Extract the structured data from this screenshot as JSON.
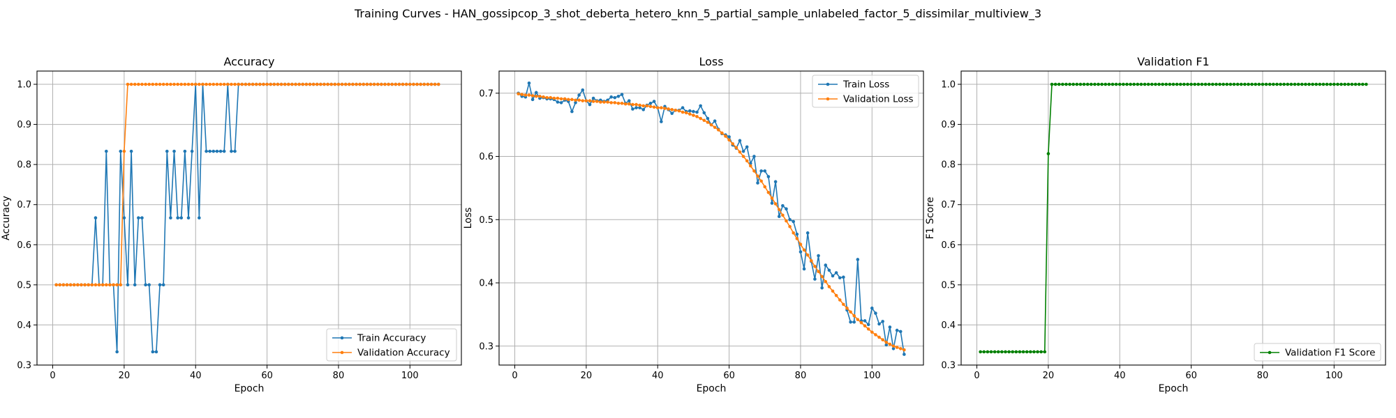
{
  "title": "Training Curves - HAN_gossipcop_3_shot_deberta_hetero_knn_5_partial_sample_unlabeled_factor_5_dissimilar_multiview_3",
  "colors": {
    "train": "#1f77b4",
    "validation": "#ff7f0e",
    "f1": "#008000"
  },
  "chart_data": [
    {
      "type": "line",
      "title": "Accuracy",
      "xlabel": "Epoch",
      "ylabel": "Accuracy",
      "xlim": [
        -4.4,
        114.4
      ],
      "ylim": [
        0.3,
        1.033
      ],
      "xticks": [
        0,
        20,
        40,
        60,
        80,
        100
      ],
      "yticks": [
        0.3,
        0.4,
        0.5,
        0.6,
        0.7,
        0.8,
        0.9,
        1.0
      ],
      "grid": true,
      "legend_position": "lower-right",
      "x_start": 1,
      "series": [
        {
          "name": "Train Accuracy",
          "color": "#1f77b4",
          "values": [
            0.5,
            0.5,
            0.5,
            0.5,
            0.5,
            0.5,
            0.5,
            0.5,
            0.5,
            0.5,
            0.5,
            0.667,
            0.5,
            0.5,
            0.833,
            0.5,
            0.5,
            0.333,
            0.833,
            0.667,
            0.5,
            0.833,
            0.5,
            0.667,
            0.667,
            0.5,
            0.5,
            0.333,
            0.333,
            0.5,
            0.5,
            0.833,
            0.667,
            0.833,
            0.667,
            0.667,
            0.833,
            0.667,
            0.833,
            1.0,
            0.667,
            1.0,
            0.833,
            0.833,
            0.833,
            0.833,
            0.833,
            0.833,
            1.0,
            0.833,
            0.833,
            1.0,
            1.0,
            1.0,
            1.0,
            1.0,
            1.0,
            1.0,
            1.0,
            1.0,
            1.0,
            1.0,
            1.0,
            1.0,
            1.0,
            1.0,
            1.0,
            1.0,
            1.0,
            1.0,
            1.0,
            1.0,
            1.0,
            1.0,
            1.0,
            1.0,
            1.0,
            1.0,
            1.0,
            1.0,
            1.0,
            1.0,
            1.0,
            1.0,
            1.0,
            1.0,
            1.0,
            1.0,
            1.0,
            1.0,
            1.0,
            1.0,
            1.0,
            1.0,
            1.0,
            1.0,
            1.0,
            1.0,
            1.0,
            1.0,
            1.0,
            1.0,
            1.0,
            1.0,
            1.0,
            1.0,
            1.0,
            1.0
          ]
        },
        {
          "name": "Validation Accuracy",
          "color": "#ff7f0e",
          "values": [
            0.5,
            0.5,
            0.5,
            0.5,
            0.5,
            0.5,
            0.5,
            0.5,
            0.5,
            0.5,
            0.5,
            0.5,
            0.5,
            0.5,
            0.5,
            0.5,
            0.5,
            0.5,
            0.5,
            0.833,
            1.0,
            1.0,
            1.0,
            1.0,
            1.0,
            1.0,
            1.0,
            1.0,
            1.0,
            1.0,
            1.0,
            1.0,
            1.0,
            1.0,
            1.0,
            1.0,
            1.0,
            1.0,
            1.0,
            1.0,
            1.0,
            1.0,
            1.0,
            1.0,
            1.0,
            1.0,
            1.0,
            1.0,
            1.0,
            1.0,
            1.0,
            1.0,
            1.0,
            1.0,
            1.0,
            1.0,
            1.0,
            1.0,
            1.0,
            1.0,
            1.0,
            1.0,
            1.0,
            1.0,
            1.0,
            1.0,
            1.0,
            1.0,
            1.0,
            1.0,
            1.0,
            1.0,
            1.0,
            1.0,
            1.0,
            1.0,
            1.0,
            1.0,
            1.0,
            1.0,
            1.0,
            1.0,
            1.0,
            1.0,
            1.0,
            1.0,
            1.0,
            1.0,
            1.0,
            1.0,
            1.0,
            1.0,
            1.0,
            1.0,
            1.0,
            1.0,
            1.0,
            1.0,
            1.0,
            1.0,
            1.0,
            1.0,
            1.0,
            1.0,
            1.0,
            1.0,
            1.0,
            1.0
          ]
        }
      ]
    },
    {
      "type": "line",
      "title": "Loss",
      "xlabel": "Epoch",
      "ylabel": "Loss",
      "xlim": [
        -4.4,
        114.4
      ],
      "ylim": [
        0.27,
        0.735
      ],
      "xticks": [
        0,
        20,
        40,
        60,
        80,
        100
      ],
      "yticks": [
        0.3,
        0.4,
        0.5,
        0.6,
        0.7
      ],
      "grid": true,
      "legend_position": "upper-right",
      "x_start": 1,
      "series": [
        {
          "name": "Train Loss",
          "color": "#1f77b4",
          "values": [
            0.7,
            0.695,
            0.694,
            0.716,
            0.69,
            0.701,
            0.692,
            0.693,
            0.691,
            0.691,
            0.69,
            0.686,
            0.685,
            0.689,
            0.687,
            0.671,
            0.685,
            0.697,
            0.705,
            0.688,
            0.682,
            0.692,
            0.688,
            0.689,
            0.687,
            0.689,
            0.694,
            0.693,
            0.695,
            0.698,
            0.684,
            0.688,
            0.675,
            0.677,
            0.677,
            0.674,
            0.681,
            0.684,
            0.687,
            0.677,
            0.655,
            0.679,
            0.674,
            0.668,
            0.673,
            0.673,
            0.677,
            0.671,
            0.672,
            0.671,
            0.67,
            0.68,
            0.669,
            0.66,
            0.65,
            0.656,
            0.643,
            0.636,
            0.634,
            0.631,
            0.618,
            0.613,
            0.625,
            0.608,
            0.615,
            0.589,
            0.6,
            0.558,
            0.577,
            0.577,
            0.568,
            0.526,
            0.56,
            0.505,
            0.522,
            0.517,
            0.5,
            0.497,
            0.477,
            0.449,
            0.422,
            0.479,
            0.434,
            0.406,
            0.443,
            0.392,
            0.428,
            0.42,
            0.411,
            0.416,
            0.408,
            0.409,
            0.357,
            0.338,
            0.338,
            0.437,
            0.34,
            0.34,
            0.334,
            0.36,
            0.352,
            0.335,
            0.339,
            0.302,
            0.33,
            0.296,
            0.325,
            0.323,
            0.287
          ]
        },
        {
          "name": "Validation Loss",
          "color": "#ff7f0e",
          "values": [
            0.699,
            0.698,
            0.697,
            0.697,
            0.696,
            0.695,
            0.695,
            0.694,
            0.693,
            0.693,
            0.692,
            0.692,
            0.691,
            0.691,
            0.69,
            0.69,
            0.689,
            0.689,
            0.688,
            0.688,
            0.688,
            0.687,
            0.687,
            0.686,
            0.686,
            0.686,
            0.685,
            0.685,
            0.684,
            0.684,
            0.683,
            0.683,
            0.682,
            0.682,
            0.681,
            0.68,
            0.68,
            0.679,
            0.678,
            0.677,
            0.677,
            0.676,
            0.675,
            0.674,
            0.673,
            0.672,
            0.67,
            0.669,
            0.667,
            0.665,
            0.663,
            0.66,
            0.657,
            0.654,
            0.65,
            0.646,
            0.642,
            0.637,
            0.632,
            0.626,
            0.62,
            0.614,
            0.607,
            0.6,
            0.593,
            0.585,
            0.577,
            0.569,
            0.561,
            0.552,
            0.543,
            0.534,
            0.525,
            0.516,
            0.507,
            0.498,
            0.489,
            0.479,
            0.47,
            0.461,
            0.452,
            0.444,
            0.435,
            0.426,
            0.418,
            0.41,
            0.402,
            0.394,
            0.387,
            0.38,
            0.373,
            0.366,
            0.36,
            0.354,
            0.348,
            0.342,
            0.337,
            0.332,
            0.327,
            0.322,
            0.318,
            0.314,
            0.31,
            0.306,
            0.303,
            0.3,
            0.298,
            0.296,
            0.294
          ]
        }
      ]
    },
    {
      "type": "line",
      "title": "Validation F1",
      "xlabel": "Epoch",
      "ylabel": "F1 Score",
      "xlim": [
        -4.4,
        114.4
      ],
      "ylim": [
        0.3,
        1.033
      ],
      "xticks": [
        0,
        20,
        40,
        60,
        80,
        100
      ],
      "yticks": [
        0.3,
        0.4,
        0.5,
        0.6,
        0.7,
        0.8,
        0.9,
        1.0
      ],
      "grid": true,
      "legend_position": "lower-right",
      "x_start": 1,
      "series": [
        {
          "name": "Validation F1 Score",
          "color": "#008000",
          "values": [
            0.333,
            0.333,
            0.333,
            0.333,
            0.333,
            0.333,
            0.333,
            0.333,
            0.333,
            0.333,
            0.333,
            0.333,
            0.333,
            0.333,
            0.333,
            0.333,
            0.333,
            0.333,
            0.333,
            0.827,
            1.0,
            1.0,
            1.0,
            1.0,
            1.0,
            1.0,
            1.0,
            1.0,
            1.0,
            1.0,
            1.0,
            1.0,
            1.0,
            1.0,
            1.0,
            1.0,
            1.0,
            1.0,
            1.0,
            1.0,
            1.0,
            1.0,
            1.0,
            1.0,
            1.0,
            1.0,
            1.0,
            1.0,
            1.0,
            1.0,
            1.0,
            1.0,
            1.0,
            1.0,
            1.0,
            1.0,
            1.0,
            1.0,
            1.0,
            1.0,
            1.0,
            1.0,
            1.0,
            1.0,
            1.0,
            1.0,
            1.0,
            1.0,
            1.0,
            1.0,
            1.0,
            1.0,
            1.0,
            1.0,
            1.0,
            1.0,
            1.0,
            1.0,
            1.0,
            1.0,
            1.0,
            1.0,
            1.0,
            1.0,
            1.0,
            1.0,
            1.0,
            1.0,
            1.0,
            1.0,
            1.0,
            1.0,
            1.0,
            1.0,
            1.0,
            1.0,
            1.0,
            1.0,
            1.0,
            1.0,
            1.0,
            1.0,
            1.0,
            1.0,
            1.0,
            1.0,
            1.0,
            1.0,
            1.0
          ]
        }
      ]
    }
  ]
}
